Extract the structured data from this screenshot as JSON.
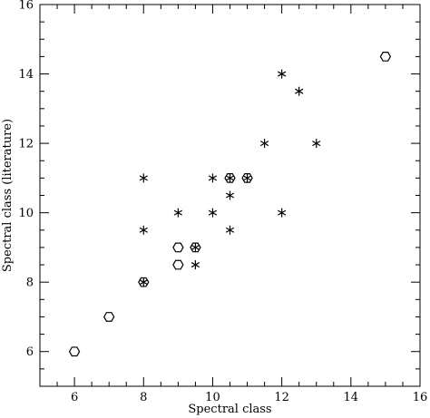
{
  "chart_data": {
    "type": "scatter",
    "title": "",
    "xlabel": "Spectral class",
    "ylabel": "Spectral class (literature)",
    "xlim": [
      5,
      16
    ],
    "ylim": [
      5,
      16
    ],
    "xticks": [
      6,
      8,
      10,
      12,
      14,
      16
    ],
    "yticks": [
      6,
      8,
      10,
      12,
      14,
      16
    ],
    "grid": false,
    "legend": "none",
    "marker_color": "#000000",
    "series": [
      {
        "marker": "hexagon",
        "points": [
          {
            "x": 6,
            "y": 6
          },
          {
            "x": 7,
            "y": 7
          },
          {
            "x": 8,
            "y": 8
          },
          {
            "x": 9,
            "y": 9
          },
          {
            "x": 9,
            "y": 8.5
          },
          {
            "x": 9.5,
            "y": 9
          },
          {
            "x": 10.5,
            "y": 11
          },
          {
            "x": 11,
            "y": 11
          },
          {
            "x": 15,
            "y": 14.5
          }
        ]
      },
      {
        "marker": "asterisk",
        "points": [
          {
            "x": 8,
            "y": 8
          },
          {
            "x": 8,
            "y": 9.5
          },
          {
            "x": 8,
            "y": 11
          },
          {
            "x": 9,
            "y": 10
          },
          {
            "x": 9.5,
            "y": 9
          },
          {
            "x": 9.5,
            "y": 8.5
          },
          {
            "x": 10,
            "y": 10
          },
          {
            "x": 10,
            "y": 11
          },
          {
            "x": 10.5,
            "y": 11
          },
          {
            "x": 10.5,
            "y": 10.5
          },
          {
            "x": 10.5,
            "y": 9.5
          },
          {
            "x": 11,
            "y": 11
          },
          {
            "x": 11.5,
            "y": 12
          },
          {
            "x": 12,
            "y": 14
          },
          {
            "x": 12,
            "y": 10
          },
          {
            "x": 12.5,
            "y": 13.5
          },
          {
            "x": 13,
            "y": 12
          }
        ]
      }
    ]
  }
}
